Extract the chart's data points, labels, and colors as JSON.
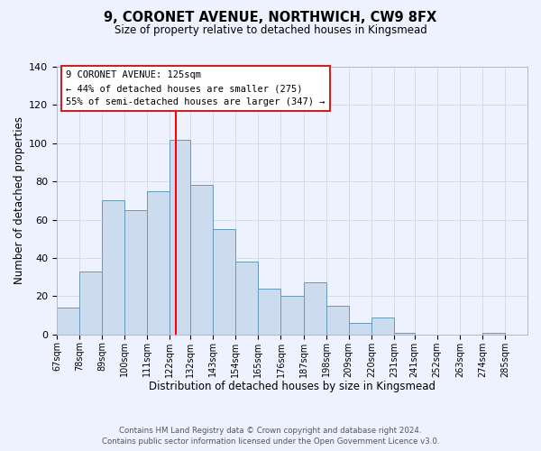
{
  "title": "9, CORONET AVENUE, NORTHWICH, CW9 8FX",
  "subtitle": "Size of property relative to detached houses in Kingsmead",
  "xlabel": "Distribution of detached houses by size in Kingsmead",
  "ylabel": "Number of detached properties",
  "footer_line1": "Contains HM Land Registry data © Crown copyright and database right 2024.",
  "footer_line2": "Contains public sector information licensed under the Open Government Licence v3.0.",
  "bin_labels": [
    "67sqm",
    "78sqm",
    "89sqm",
    "100sqm",
    "111sqm",
    "122sqm",
    "132sqm",
    "143sqm",
    "154sqm",
    "165sqm",
    "176sqm",
    "187sqm",
    "198sqm",
    "209sqm",
    "220sqm",
    "231sqm",
    "241sqm",
    "252sqm",
    "263sqm",
    "274sqm",
    "285sqm"
  ],
  "bin_edges": [
    67,
    78,
    89,
    100,
    111,
    122,
    132,
    143,
    154,
    165,
    176,
    187,
    198,
    209,
    220,
    231,
    241,
    252,
    263,
    274,
    285,
    296
  ],
  "bar_heights": [
    14,
    33,
    70,
    65,
    75,
    102,
    78,
    55,
    38,
    24,
    20,
    27,
    15,
    6,
    9,
    1,
    0,
    0,
    0,
    1,
    0
  ],
  "bar_color": "#ccdcee",
  "bar_edge_color": "#6699bb",
  "vline_x": 125,
  "vline_color": "red",
  "ylim": [
    0,
    140
  ],
  "yticks": [
    0,
    20,
    40,
    60,
    80,
    100,
    120,
    140
  ],
  "annotation_title": "9 CORONET AVENUE: 125sqm",
  "annotation_line1": "← 44% of detached houses are smaller (275)",
  "annotation_line2": "55% of semi-detached houses are larger (347) →",
  "bg_color": "#eef2ff",
  "grid_color": "#d0d8e8"
}
